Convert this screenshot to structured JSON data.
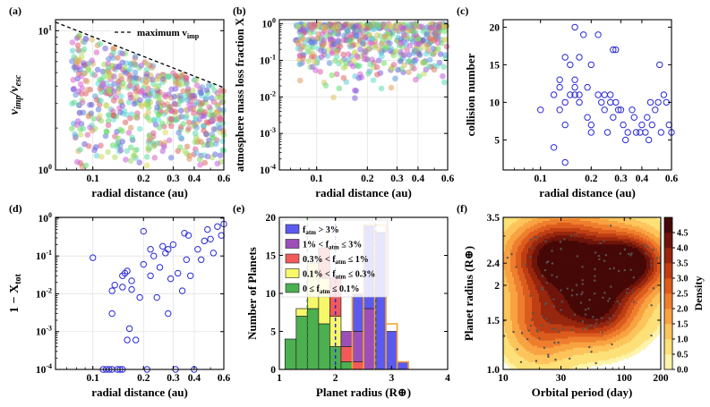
{
  "figure": {
    "colors": {
      "axis": "#000000",
      "open_marker": "#2a2ad8",
      "fit_line": "#000000",
      "hist": {
        "green": "#4caf50",
        "yellow": "#f7f76a",
        "red": "#f25a5a",
        "purple": "#9b4fb8",
        "blue": "#5a5aee",
        "orange_outline": "#f2a22a"
      }
    }
  },
  "chart_data": [
    {
      "id": "a",
      "panel_label": "(a)",
      "type": "scatter",
      "xlabel": "radial distance (au)",
      "ylabel": "v_imp/v_esc",
      "xscale": "log",
      "yscale": "log",
      "xlim": [
        0.06,
        0.6
      ],
      "ylim": [
        1,
        12
      ],
      "xticks": [
        0.1,
        0.2,
        0.3,
        0.4,
        0.6
      ],
      "xtick_labels": [
        "0.1",
        "0.2",
        "0.3",
        "0.4",
        "0.6"
      ],
      "yticks": [
        1,
        10
      ],
      "ytick_labels": [
        "10^0",
        "10^1"
      ],
      "legend": [
        "maximum v_imp"
      ],
      "line": {
        "name": "maximum v_imp",
        "x": [
          0.06,
          0.6
        ],
        "y": [
          11.5,
          3.9
        ]
      },
      "points_note": "several hundred multicolored points filling the region below the maximum-v_imp line",
      "seed": 11,
      "n_points": 620
    },
    {
      "id": "b",
      "panel_label": "(b)",
      "type": "scatter",
      "xlabel": "radial distance (au)",
      "ylabel": "atmosphere mass loss fraction X",
      "xscale": "log",
      "yscale": "log",
      "xlim": [
        0.06,
        0.6
      ],
      "ylim": [
        0.0001,
        1.3
      ],
      "xticks": [
        0.1,
        0.2,
        0.3,
        0.4,
        0.6
      ],
      "xtick_labels": [
        "0.1",
        "0.2",
        "0.3",
        "0.4",
        "0.6"
      ],
      "yticks": [
        0.0001,
        0.001,
        0.01,
        0.1,
        1
      ],
      "ytick_labels": [
        "10^-4",
        "10^-3",
        "10^-2",
        "10^-1",
        "10^0"
      ],
      "seed": 29,
      "n_points": 620
    },
    {
      "id": "c",
      "panel_label": "(c)",
      "type": "scatter",
      "xlabel": "radial distance (au)",
      "ylabel": "collision number",
      "xscale": "log",
      "yscale": "linear",
      "xlim": [
        0.06,
        0.6
      ],
      "ylim": [
        1,
        21
      ],
      "xticks": [
        0.1,
        0.2,
        0.3,
        0.4,
        0.6
      ],
      "xtick_labels": [
        "0.1",
        "0.2",
        "0.3",
        "0.4",
        "0.6"
      ],
      "yticks": [
        5,
        10,
        15,
        20
      ],
      "ytick_labels": [
        "5",
        "10",
        "15",
        "20"
      ],
      "x": [
        0.1,
        0.12,
        0.12,
        0.13,
        0.13,
        0.13,
        0.14,
        0.14,
        0.14,
        0.14,
        0.15,
        0.15,
        0.16,
        0.16,
        0.16,
        0.16,
        0.17,
        0.17,
        0.17,
        0.18,
        0.19,
        0.19,
        0.2,
        0.2,
        0.2,
        0.22,
        0.22,
        0.23,
        0.24,
        0.24,
        0.25,
        0.26,
        0.26,
        0.27,
        0.27,
        0.28,
        0.28,
        0.29,
        0.3,
        0.31,
        0.32,
        0.33,
        0.35,
        0.36,
        0.37,
        0.39,
        0.4,
        0.42,
        0.43,
        0.44,
        0.45,
        0.46,
        0.48,
        0.5,
        0.51,
        0.52,
        0.54,
        0.56,
        0.58,
        0.6
      ],
      "y": [
        9,
        4,
        11,
        9,
        12,
        13,
        2,
        7,
        10,
        16,
        11,
        15,
        11,
        20,
        12,
        13,
        11,
        16,
        10,
        19,
        8,
        12,
        6,
        7,
        15,
        11,
        19,
        10,
        11,
        9,
        6,
        11,
        10,
        17,
        8,
        17,
        10,
        9,
        9,
        7,
        5,
        6,
        9,
        8,
        6,
        6,
        7,
        6,
        8,
        5,
        10,
        7,
        9,
        10,
        15,
        6,
        11,
        10,
        7,
        6
      ]
    },
    {
      "id": "d",
      "panel_label": "(d)",
      "type": "scatter",
      "xlabel": "radial distance (au)",
      "ylabel": "1 - X_tot",
      "xscale": "log",
      "yscale": "log",
      "xlim": [
        0.06,
        0.6
      ],
      "ylim": [
        0.0001,
        1.05
      ],
      "xticks": [
        0.1,
        0.2,
        0.3,
        0.4,
        0.6
      ],
      "xtick_labels": [
        "0.1",
        "0.2",
        "0.3",
        "0.4",
        "0.6"
      ],
      "yticks": [
        0.0001,
        0.001,
        0.01,
        0.1,
        1
      ],
      "ytick_labels": [
        "10^-4",
        "10^-3",
        "10^-2",
        "10^-1",
        "10^0"
      ],
      "x": [
        0.1,
        0.115,
        0.12,
        0.125,
        0.13,
        0.13,
        0.135,
        0.14,
        0.145,
        0.15,
        0.15,
        0.155,
        0.16,
        0.16,
        0.165,
        0.17,
        0.17,
        0.18,
        0.19,
        0.2,
        0.2,
        0.21,
        0.22,
        0.22,
        0.23,
        0.24,
        0.25,
        0.26,
        0.27,
        0.28,
        0.28,
        0.29,
        0.3,
        0.31,
        0.32,
        0.34,
        0.35,
        0.36,
        0.37,
        0.38,
        0.4,
        0.42,
        0.44,
        0.46,
        0.48,
        0.5,
        0.52,
        0.55,
        0.58,
        0.6,
        0.13,
        0.15
      ],
      "y": [
        0.09,
        0.0001,
        0.0001,
        0.0001,
        0.003,
        0.012,
        0.017,
        0.0001,
        0.0001,
        0.03,
        0.015,
        0.035,
        0.04,
        0.0006,
        0.0012,
        0.013,
        0.022,
        0.0006,
        0.008,
        0.45,
        0.06,
        0.0001,
        0.03,
        0.15,
        0.1,
        0.008,
        0.05,
        0.18,
        0.12,
        0.003,
        0.15,
        0.025,
        0.2,
        0.0001,
        0.035,
        0.012,
        0.4,
        0.08,
        0.35,
        0.03,
        0.0001,
        0.15,
        0.08,
        0.25,
        0.5,
        0.28,
        0.12,
        0.6,
        0.35,
        0.7,
        0.0001,
        0.0001
      ]
    },
    {
      "id": "e",
      "panel_label": "(e)",
      "type": "bar",
      "subtype": "stacked histogram",
      "xlabel": "Planet radius (R⊕)",
      "ylabel": "Number of Planets",
      "xlim": [
        1,
        4
      ],
      "ylim": [
        0,
        20
      ],
      "xticks": [
        1,
        2,
        3,
        4
      ],
      "xtick_labels": [
        "1",
        "2",
        "3",
        "4"
      ],
      "yticks": [
        0,
        5,
        10,
        15,
        20
      ],
      "ytick_labels": [
        "0",
        "5",
        "10",
        "15",
        "20"
      ],
      "bin_edges": [
        1.1,
        1.3,
        1.5,
        1.7,
        1.9,
        2.1,
        2.3,
        2.5,
        2.7,
        2.9,
        3.1,
        3.3
      ],
      "series": [
        {
          "name": "0 ≤ f_atm ≤ 0.1%",
          "color": "#4caf50",
          "values": [
            4,
            7,
            8,
            6,
            3,
            1,
            0,
            0,
            0,
            0,
            0
          ]
        },
        {
          "name": "0.1% < f_atm ≤ 0.3%",
          "color": "#f7f76a",
          "values": [
            0,
            1,
            6,
            6,
            4,
            0,
            0,
            0,
            0,
            0,
            0
          ]
        },
        {
          "name": "0.3% < f_atm ≤ 1%",
          "color": "#f25a5a",
          "values": [
            0,
            0,
            0,
            4,
            5,
            2,
            1,
            0,
            0,
            0,
            0
          ]
        },
        {
          "name": "1% < f_atm ≤ 3%",
          "color": "#9b4fb8",
          "values": [
            0,
            0,
            0,
            0,
            0,
            2,
            4,
            8,
            0,
            0,
            0
          ]
        },
        {
          "name": "f_atm > 3%",
          "color": "#5a5aee",
          "values": [
            0,
            0,
            0,
            0,
            0,
            0,
            5,
            11,
            18,
            5,
            1
          ]
        }
      ],
      "outline_totals": [
        0,
        0,
        0,
        0,
        0,
        0,
        10,
        19,
        19,
        6,
        1
      ],
      "vlines": [
        {
          "x": 1.5,
          "color": "#2e7d32",
          "style": "dashed"
        },
        {
          "x": 2.0,
          "color": "#2a2ad8",
          "style": "dashed"
        },
        {
          "x": 2.72,
          "color": "#555555",
          "style": "dashed"
        }
      ],
      "legend": [
        "f_atm > 3%",
        "1% < f_atm ≤ 3%",
        "0.3% < f_atm ≤ 1%",
        "0.1% < f_atm ≤ 0.3%",
        "0 ≤ f_atm ≤ 0.1%"
      ]
    },
    {
      "id": "f",
      "panel_label": "(f)",
      "type": "heatmap",
      "subtype": "kde density contour",
      "xlabel": "Orbital period (day)",
      "ylabel": "Planet radius (R⊕)",
      "colorbar_label": "Density",
      "xscale": "log",
      "yscale": "log",
      "xlim": [
        10,
        200
      ],
      "ylim": [
        1.0,
        3.5
      ],
      "xticks": [
        10,
        30,
        100,
        200
      ],
      "xtick_labels": [
        "10",
        "30",
        "100",
        "200"
      ],
      "yticks": [
        1.0,
        1.5,
        2,
        2.4,
        3.5
      ],
      "ytick_labels": [
        "1.0",
        "1.5",
        "2",
        "2.4",
        "3.5"
      ],
      "colorbar_ticks": [
        0.0,
        0.5,
        1.0,
        1.5,
        2.0,
        2.5,
        3.0,
        3.5,
        4.0,
        4.5
      ],
      "colorbar_tick_labels": [
        "0.0",
        "0.5",
        "1.0",
        "1.5",
        "2.0",
        "2.5",
        "3.0",
        "3.5",
        "4.0",
        "4.5"
      ],
      "colorbar_range": [
        0,
        5
      ],
      "seed": 77,
      "n_points": 150
    }
  ]
}
